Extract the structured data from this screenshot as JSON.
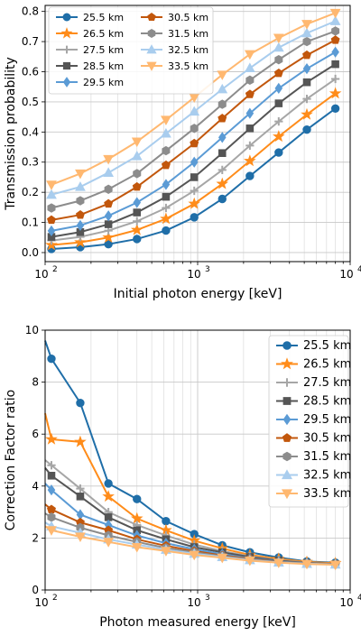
{
  "colors": {
    "25.5 km": "#1f6ea8",
    "26.5 km": "#ff8c1a",
    "27.5 km": "#a6a6a6",
    "28.5 km": "#555555",
    "29.5 km": "#5b9bd5",
    "30.5 km": "#c2570c",
    "31.5 km": "#8c8c8c",
    "32.5 km": "#a9cdee",
    "33.5 km": "#ffb870"
  },
  "chart_data": [
    {
      "type": "line",
      "title": "",
      "xlabel": "Initial photon energy [keV]",
      "ylabel": "Transmission probability",
      "xscale": "log",
      "xlim": [
        100,
        10000
      ],
      "ylim": [
        -0.03,
        0.82
      ],
      "xticks": [
        100,
        1000,
        10000
      ],
      "xtick_labels": [
        "10",
        "10",
        "10"
      ],
      "xtick_exponents": [
        "2",
        "3",
        "4"
      ],
      "yticks": [
        0.0,
        0.1,
        0.2,
        0.3,
        0.4,
        0.5,
        0.6,
        0.7,
        0.8
      ],
      "ytick_labels": [
        "0.0",
        "0.1",
        "0.2",
        "0.3",
        "0.4",
        "0.5",
        "0.6",
        "0.7",
        "0.8"
      ],
      "grid": true,
      "legend_position": "upper-left",
      "legend_columns": 2,
      "x": [
        110,
        170,
        260,
        400,
        620,
        950,
        1450,
        2200,
        3400,
        5200,
        8000
      ],
      "series": [
        {
          "name": "25.5 km",
          "marker": "circle",
          "values": [
            0.012,
            0.018,
            0.028,
            0.045,
            0.073,
            0.117,
            0.178,
            0.254,
            0.332,
            0.408,
            0.478
          ]
        },
        {
          "name": "26.5 km",
          "marker": "star",
          "values": [
            0.025,
            0.034,
            0.05,
            0.075,
            0.112,
            0.162,
            0.228,
            0.304,
            0.385,
            0.458,
            0.528
          ]
        },
        {
          "name": "27.5 km",
          "marker": "plus",
          "values": [
            0.04,
            0.052,
            0.073,
            0.104,
            0.148,
            0.205,
            0.274,
            0.355,
            0.435,
            0.51,
            0.576
          ]
        },
        {
          "name": "28.5 km",
          "marker": "square",
          "values": [
            0.052,
            0.068,
            0.094,
            0.133,
            0.185,
            0.25,
            0.33,
            0.412,
            0.495,
            0.565,
            0.625
          ]
        },
        {
          "name": "29.5 km",
          "marker": "diamond",
          "values": [
            0.072,
            0.09,
            0.122,
            0.166,
            0.226,
            0.3,
            0.382,
            0.462,
            0.545,
            0.61,
            0.665
          ]
        },
        {
          "name": "30.5 km",
          "marker": "pentagon",
          "values": [
            0.108,
            0.125,
            0.162,
            0.218,
            0.29,
            0.362,
            0.445,
            0.525,
            0.595,
            0.655,
            0.705
          ]
        },
        {
          "name": "31.5 km",
          "marker": "hexagon",
          "values": [
            0.148,
            0.172,
            0.21,
            0.262,
            0.338,
            0.412,
            0.492,
            0.572,
            0.64,
            0.7,
            0.735
          ]
        },
        {
          "name": "32.5 km",
          "marker": "triangle-up",
          "values": [
            0.192,
            0.218,
            0.265,
            0.32,
            0.395,
            0.468,
            0.542,
            0.612,
            0.68,
            0.728,
            0.768
          ]
        },
        {
          "name": "33.5 km",
          "marker": "triangle-down",
          "values": [
            0.225,
            0.262,
            0.31,
            0.368,
            0.44,
            0.515,
            0.59,
            0.658,
            0.712,
            0.758,
            0.795
          ]
        }
      ]
    },
    {
      "type": "line",
      "title": "",
      "xlabel": "Photon measured energy [keV]",
      "ylabel": "Correction Factor ratio",
      "xscale": "log",
      "xlim": [
        100,
        10000
      ],
      "ylim": [
        0,
        10
      ],
      "xticks": [
        100,
        1000,
        10000
      ],
      "xtick_labels": [
        "10",
        "10",
        "10"
      ],
      "xtick_exponents": [
        "2",
        "3",
        "4"
      ],
      "yticks": [
        0,
        2,
        4,
        6,
        8,
        10
      ],
      "ytick_labels": [
        "0",
        "2",
        "4",
        "6",
        "8",
        "10"
      ],
      "grid": true,
      "legend_position": "upper-right",
      "legend_columns": 1,
      "x": [
        110,
        170,
        260,
        400,
        620,
        950,
        1450,
        2200,
        3400,
        5200,
        8000
      ],
      "x_start": 100,
      "series": [
        {
          "name": "25.5 km",
          "marker": "circle",
          "start": 9.6,
          "values": [
            8.9,
            7.2,
            4.1,
            3.5,
            2.65,
            2.15,
            1.72,
            1.45,
            1.25,
            1.1,
            1.05
          ]
        },
        {
          "name": "26.5 km",
          "marker": "star",
          "start": 6.8,
          "values": [
            5.8,
            5.7,
            3.6,
            2.75,
            2.3,
            1.9,
            1.6,
            1.35,
            1.2,
            1.08,
            1.03
          ]
        },
        {
          "name": "27.5 km",
          "marker": "plus",
          "start": 5.0,
          "values": [
            4.8,
            3.9,
            3.0,
            2.5,
            2.1,
            1.75,
            1.5,
            1.3,
            1.15,
            1.05,
            1.0
          ]
        },
        {
          "name": "28.5 km",
          "marker": "square",
          "start": 4.7,
          "values": [
            4.4,
            3.6,
            2.8,
            2.3,
            1.95,
            1.65,
            1.45,
            1.27,
            1.13,
            1.04,
            1.0
          ]
        },
        {
          "name": "29.5 km",
          "marker": "diamond",
          "start": 4.1,
          "values": [
            3.85,
            2.9,
            2.5,
            2.1,
            1.8,
            1.57,
            1.38,
            1.22,
            1.1,
            1.03,
            0.99
          ]
        },
        {
          "name": "30.5 km",
          "marker": "pentagon",
          "start": 3.3,
          "values": [
            3.1,
            2.6,
            2.3,
            1.95,
            1.7,
            1.5,
            1.33,
            1.2,
            1.08,
            1.02,
            0.99
          ]
        },
        {
          "name": "31.5 km",
          "marker": "hexagon",
          "start": 2.95,
          "values": [
            2.8,
            2.4,
            2.1,
            1.85,
            1.62,
            1.45,
            1.3,
            1.17,
            1.07,
            1.02,
            0.98
          ]
        },
        {
          "name": "32.5 km",
          "marker": "triangle-up",
          "start": 2.6,
          "values": [
            2.45,
            2.2,
            1.95,
            1.75,
            1.55,
            1.4,
            1.27,
            1.15,
            1.06,
            1.01,
            0.98
          ]
        },
        {
          "name": "33.5 km",
          "marker": "triangle-down",
          "start": 2.45,
          "values": [
            2.3,
            2.05,
            1.85,
            1.65,
            1.5,
            1.35,
            1.24,
            1.13,
            1.05,
            1.0,
            0.97
          ]
        }
      ]
    }
  ]
}
